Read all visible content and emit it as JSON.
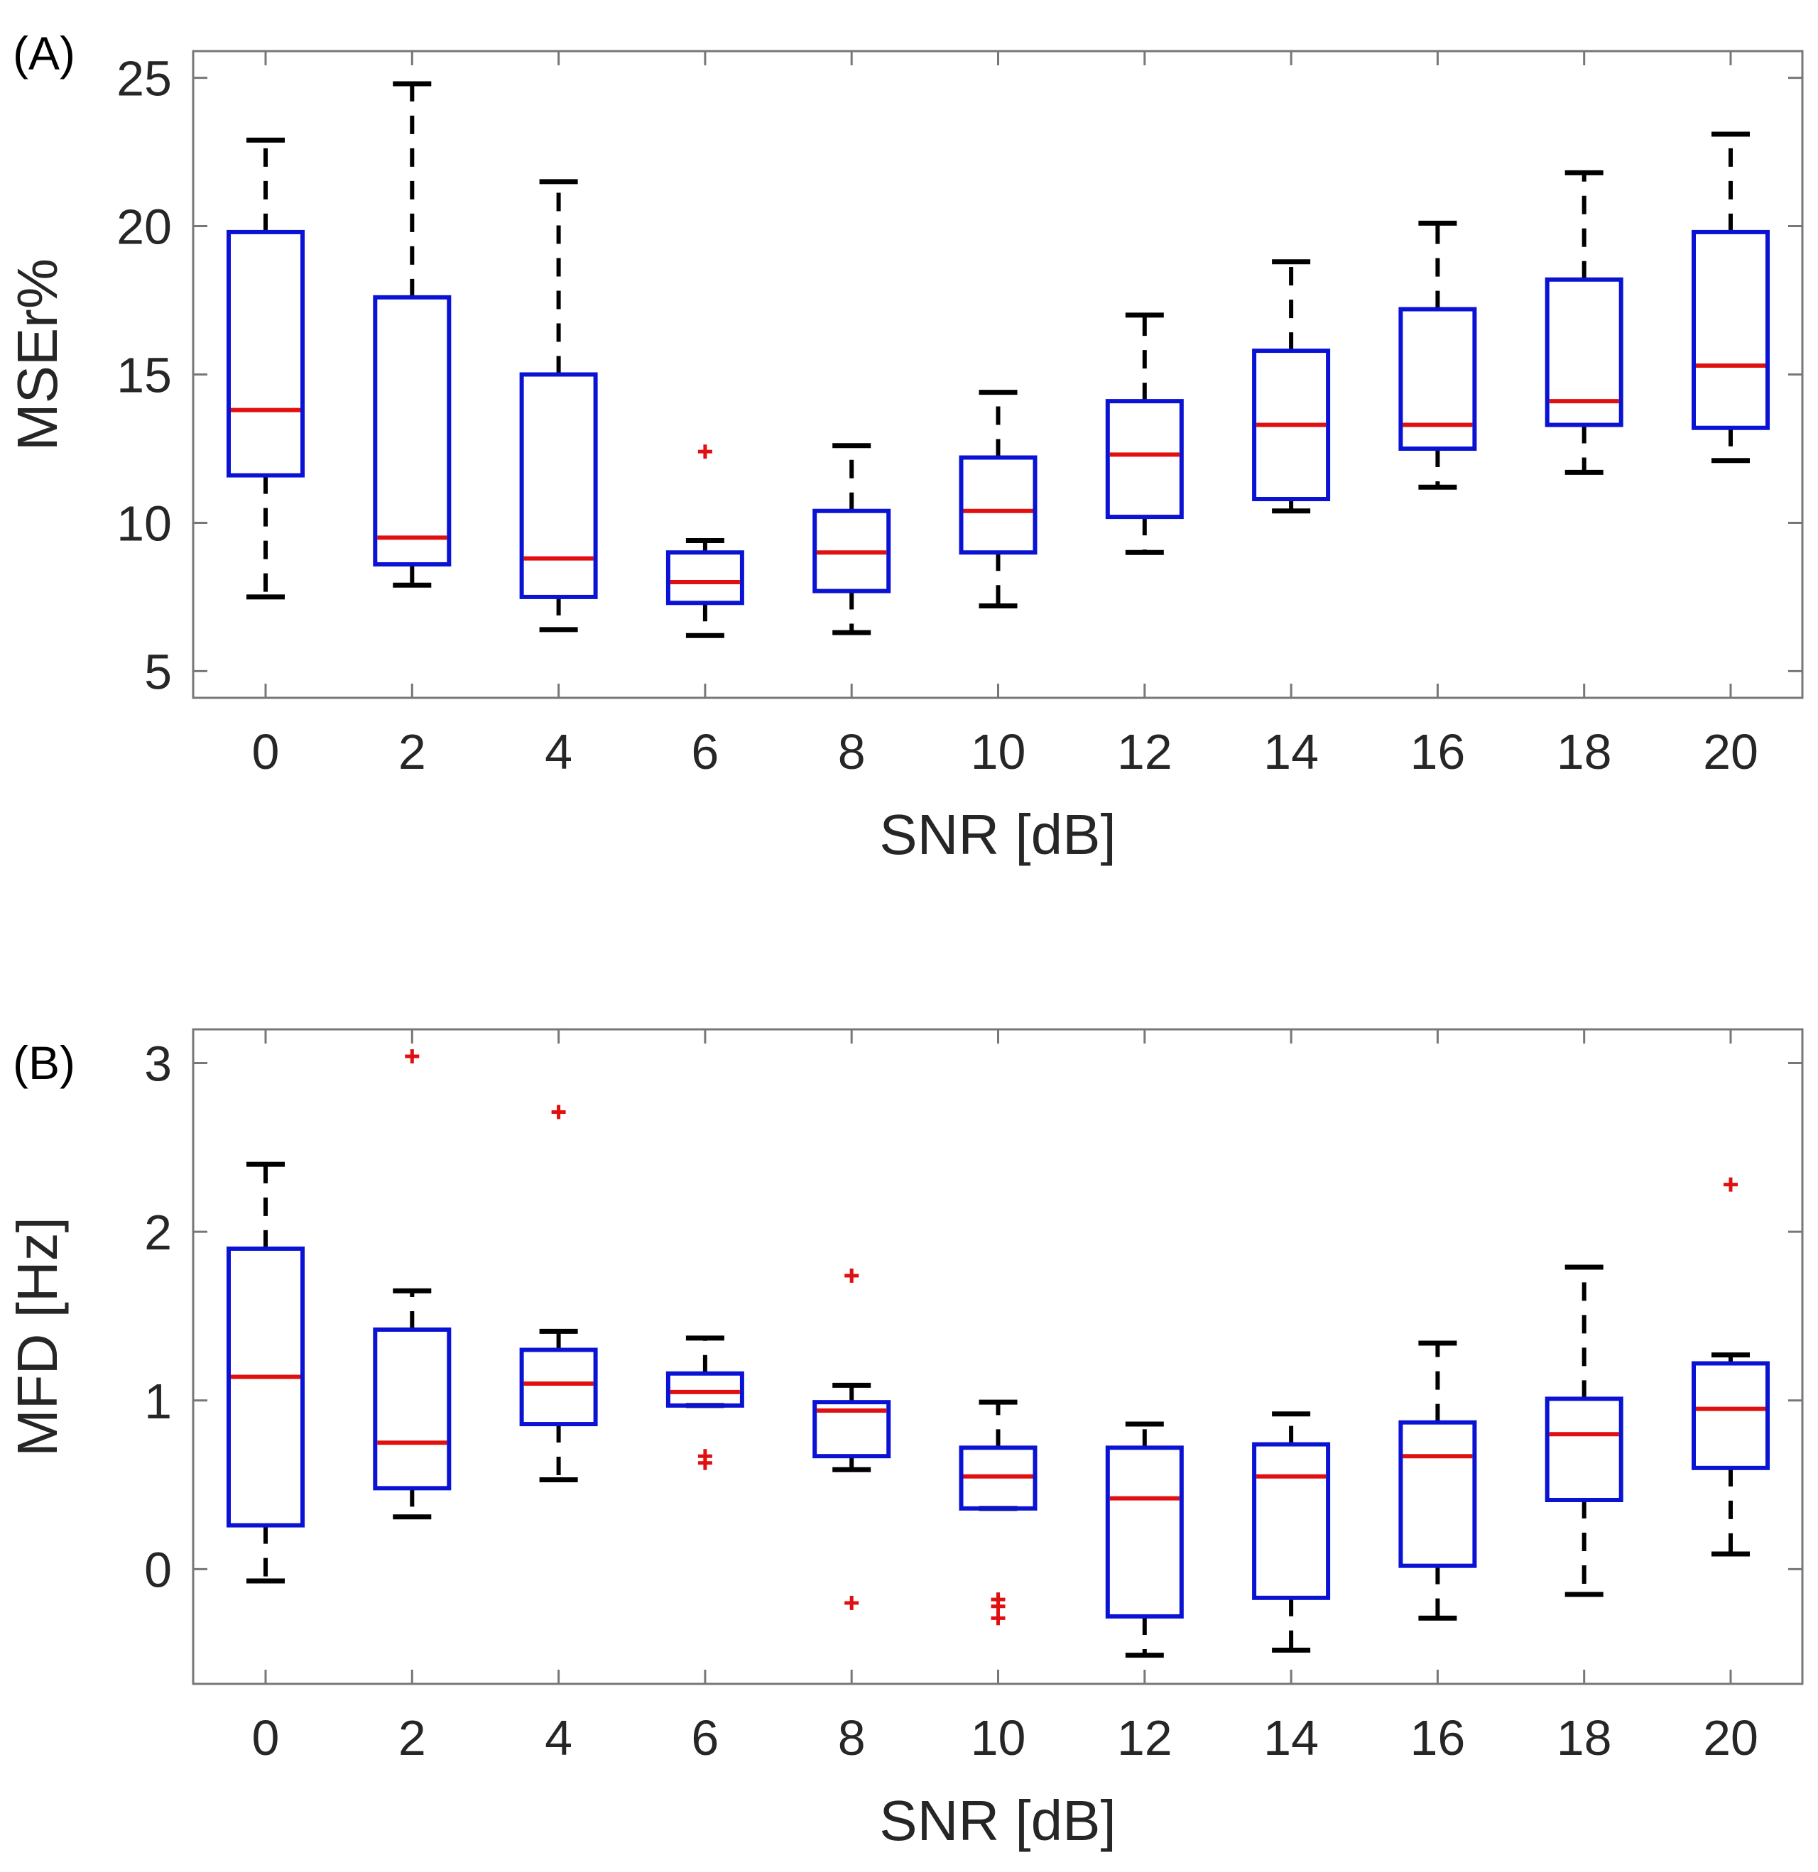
{
  "colors": {
    "box": "#0a12d4",
    "median": "#e01010",
    "whisker": "#000000",
    "outlier": "#e01010",
    "axis": "#777777",
    "text": "#262626"
  },
  "chart_data": [
    {
      "type": "boxplot",
      "panel_label": "(A)",
      "title": "",
      "xlabel": "SNR [dB]",
      "ylabel": "MSEr%",
      "ylim": [
        4.1,
        25.9
      ],
      "yticks": [
        "5",
        "10",
        "15",
        "20",
        "25"
      ],
      "categories": [
        "0",
        "2",
        "4",
        "6",
        "8",
        "10",
        "12",
        "14",
        "16",
        "18",
        "20"
      ],
      "boxes": [
        {
          "x": "0",
          "whisker_low": 7.5,
          "q1": 11.6,
          "median": 13.8,
          "q3": 19.8,
          "whisker_high": 22.9,
          "outliers": []
        },
        {
          "x": "2",
          "whisker_low": 7.9,
          "q1": 8.6,
          "median": 9.5,
          "q3": 17.6,
          "whisker_high": 24.8,
          "outliers": []
        },
        {
          "x": "4",
          "whisker_low": 6.4,
          "q1": 7.5,
          "median": 8.8,
          "q3": 15.0,
          "whisker_high": 21.5,
          "outliers": []
        },
        {
          "x": "6",
          "whisker_low": 6.2,
          "q1": 7.3,
          "median": 8.0,
          "q3": 9.0,
          "whisker_high": 9.4,
          "outliers": [
            12.4
          ]
        },
        {
          "x": "8",
          "whisker_low": 6.3,
          "q1": 7.7,
          "median": 9.0,
          "q3": 10.4,
          "whisker_high": 12.6,
          "outliers": []
        },
        {
          "x": "10",
          "whisker_low": 7.2,
          "q1": 9.0,
          "median": 10.4,
          "q3": 12.2,
          "whisker_high": 14.4,
          "outliers": []
        },
        {
          "x": "12",
          "whisker_low": 9.0,
          "q1": 10.2,
          "median": 12.3,
          "q3": 14.1,
          "whisker_high": 17.0,
          "outliers": []
        },
        {
          "x": "14",
          "whisker_low": 10.4,
          "q1": 10.8,
          "median": 13.3,
          "q3": 15.8,
          "whisker_high": 18.8,
          "outliers": []
        },
        {
          "x": "16",
          "whisker_low": 11.2,
          "q1": 12.5,
          "median": 13.3,
          "q3": 17.2,
          "whisker_high": 20.1,
          "outliers": []
        },
        {
          "x": "18",
          "whisker_low": 11.7,
          "q1": 13.3,
          "median": 14.1,
          "q3": 18.2,
          "whisker_high": 21.8,
          "outliers": []
        },
        {
          "x": "20",
          "whisker_low": 12.1,
          "q1": 13.2,
          "median": 15.3,
          "q3": 19.8,
          "whisker_high": 23.1,
          "outliers": []
        }
      ]
    },
    {
      "type": "boxplot",
      "panel_label": "(B)",
      "title": "",
      "xlabel": "SNR [dB]",
      "ylabel": "MFD [Hz]",
      "ylim": [
        -0.68,
        3.2
      ],
      "yticks": [
        "0",
        "1",
        "2",
        "3"
      ],
      "categories": [
        "0",
        "2",
        "4",
        "6",
        "8",
        "10",
        "12",
        "14",
        "16",
        "18",
        "20"
      ],
      "boxes": [
        {
          "x": "0",
          "whisker_low": -0.07,
          "q1": 0.26,
          "median": 1.14,
          "q3": 1.9,
          "whisker_high": 2.4,
          "outliers": []
        },
        {
          "x": "2",
          "whisker_low": 0.31,
          "q1": 0.48,
          "median": 0.75,
          "q3": 1.42,
          "whisker_high": 1.65,
          "outliers": [
            3.04
          ]
        },
        {
          "x": "4",
          "whisker_low": 0.53,
          "q1": 0.86,
          "median": 1.1,
          "q3": 1.3,
          "whisker_high": 1.41,
          "outliers": [
            2.71
          ]
        },
        {
          "x": "6",
          "whisker_low": 0.97,
          "q1": 0.97,
          "median": 1.05,
          "q3": 1.16,
          "whisker_high": 1.37,
          "outliers": [
            0.67,
            0.63
          ]
        },
        {
          "x": "8",
          "whisker_low": 0.59,
          "q1": 0.67,
          "median": 0.94,
          "q3": 0.99,
          "whisker_high": 1.09,
          "outliers": [
            1.74,
            -0.2
          ]
        },
        {
          "x": "10",
          "whisker_low": 0.36,
          "q1": 0.36,
          "median": 0.55,
          "q3": 0.72,
          "whisker_high": 0.99,
          "outliers": [
            -0.18,
            -0.22,
            -0.29
          ]
        },
        {
          "x": "12",
          "whisker_low": -0.51,
          "q1": -0.28,
          "median": 0.42,
          "q3": 0.72,
          "whisker_high": 0.86,
          "outliers": []
        },
        {
          "x": "14",
          "whisker_low": -0.48,
          "q1": -0.17,
          "median": 0.55,
          "q3": 0.74,
          "whisker_high": 0.92,
          "outliers": []
        },
        {
          "x": "16",
          "whisker_low": -0.29,
          "q1": 0.02,
          "median": 0.67,
          "q3": 0.87,
          "whisker_high": 1.34,
          "outliers": []
        },
        {
          "x": "18",
          "whisker_low": -0.15,
          "q1": 0.41,
          "median": 0.8,
          "q3": 1.01,
          "whisker_high": 1.79,
          "outliers": []
        },
        {
          "x": "20",
          "whisker_low": 0.09,
          "q1": 0.6,
          "median": 0.95,
          "q3": 1.22,
          "whisker_high": 1.27,
          "outliers": [
            2.28
          ]
        }
      ]
    }
  ]
}
